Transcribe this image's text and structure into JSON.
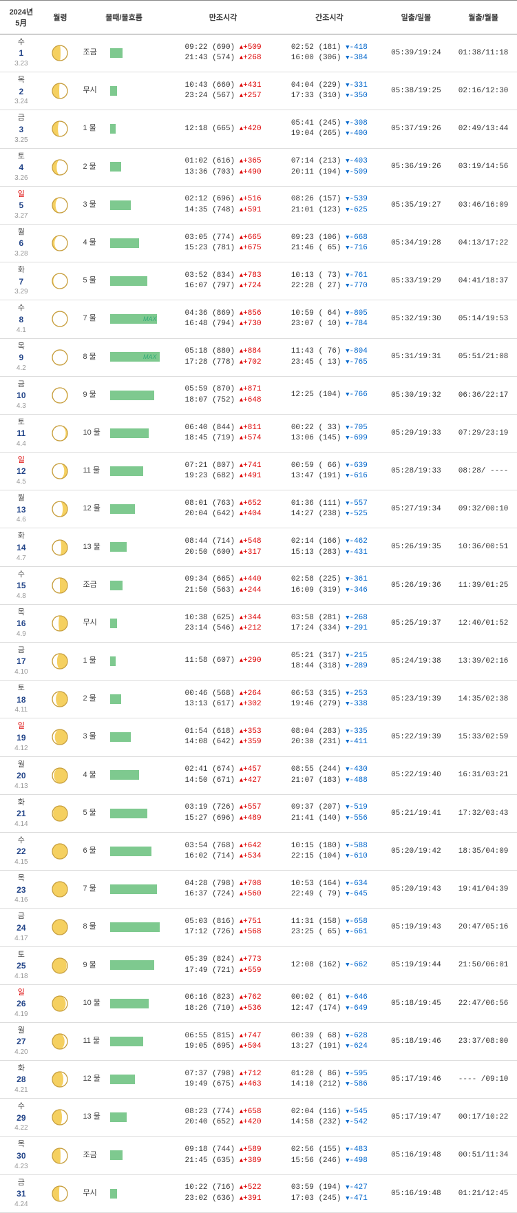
{
  "header": {
    "date": "2024년\n5月",
    "moonphase": "월령",
    "tidestate": "물때/물흐름",
    "hightide": "만조시각",
    "lowtide": "간조시각",
    "sun": "일출/일몰",
    "moon": "월출/월몰"
  },
  "days": [
    {
      "dow": "수",
      "d": "1",
      "lunar": "3.23",
      "phase": 265,
      "tide": "조금",
      "bar": "jo",
      "max": false,
      "hi": [
        {
          "t": "09:22",
          "l": "690",
          "d": "+509"
        },
        {
          "t": "21:43",
          "l": "574",
          "d": "+268"
        }
      ],
      "lo": [
        {
          "t": "02:52",
          "l": "181",
          "d": "-418"
        },
        {
          "t": "16:00",
          "l": "306",
          "d": "-384"
        }
      ],
      "sun": "05:39/19:24",
      "moon": "01:38/11:18"
    },
    {
      "dow": "목",
      "d": "2",
      "lunar": "3.24",
      "phase": 275,
      "tide": "무시",
      "bar": "mu",
      "max": false,
      "hi": [
        {
          "t": "10:43",
          "l": "660",
          "d": "+431"
        },
        {
          "t": "23:24",
          "l": "567",
          "d": "+257"
        }
      ],
      "lo": [
        {
          "t": "04:04",
          "l": "229",
          "d": "-331"
        },
        {
          "t": "17:33",
          "l": "310",
          "d": "-350"
        }
      ],
      "sun": "05:38/19:25",
      "moon": "02:16/12:30"
    },
    {
      "dow": "금",
      "d": "3",
      "lunar": "3.25",
      "phase": 285,
      "tide": "1 물",
      "bar": "t1",
      "max": false,
      "hi": [
        {
          "t": "12:18",
          "l": "665",
          "d": "+420"
        }
      ],
      "lo": [
        {
          "t": "05:41",
          "l": "245",
          "d": "-308"
        },
        {
          "t": "19:04",
          "l": "265",
          "d": "-400"
        }
      ],
      "sun": "05:37/19:26",
      "moon": "02:49/13:44"
    },
    {
      "dow": "토",
      "d": "4",
      "lunar": "3.26",
      "phase": 295,
      "tide": "2 물",
      "bar": "t2",
      "max": false,
      "hi": [
        {
          "t": "01:02",
          "l": "616",
          "d": "+365"
        },
        {
          "t": "13:36",
          "l": "703",
          "d": "+490"
        }
      ],
      "lo": [
        {
          "t": "07:14",
          "l": "213",
          "d": "-403"
        },
        {
          "t": "20:11",
          "l": "194",
          "d": "-509"
        }
      ],
      "sun": "05:36/19:26",
      "moon": "03:19/14:56"
    },
    {
      "dow": "일",
      "d": "5",
      "lunar": "3.27",
      "phase": 305,
      "tide": "3 물",
      "bar": "t3",
      "max": false,
      "sun_day": true,
      "hi": [
        {
          "t": "02:12",
          "l": "696",
          "d": "+516"
        },
        {
          "t": "14:35",
          "l": "748",
          "d": "+591"
        }
      ],
      "lo": [
        {
          "t": "08:26",
          "l": "157",
          "d": "-539"
        },
        {
          "t": "21:01",
          "l": "123",
          "d": "-625"
        }
      ],
      "sun": "05:35/19:27",
      "moon": "03:46/16:09"
    },
    {
      "dow": "월",
      "d": "6",
      "lunar": "3.28",
      "phase": 315,
      "tide": "4 물",
      "bar": "t4",
      "max": false,
      "hi": [
        {
          "t": "03:05",
          "l": "774",
          "d": "+665"
        },
        {
          "t": "15:23",
          "l": "781",
          "d": "+675"
        }
      ],
      "lo": [
        {
          "t": "09:23",
          "l": "106",
          "d": "-668"
        },
        {
          "t": "21:46",
          "l": " 65",
          "d": "-716"
        }
      ],
      "sun": "05:34/19:28",
      "moon": "04:13/17:22"
    },
    {
      "dow": "화",
      "d": "7",
      "lunar": "3.29",
      "phase": 330,
      "tide": "5 물",
      "bar": "t5",
      "max": false,
      "hi": [
        {
          "t": "03:52",
          "l": "834",
          "d": "+783"
        },
        {
          "t": "16:07",
          "l": "797",
          "d": "+724"
        }
      ],
      "lo": [
        {
          "t": "10:13",
          "l": " 73",
          "d": "-761"
        },
        {
          "t": "22:28",
          "l": " 27",
          "d": "-770"
        }
      ],
      "sun": "05:33/19:29",
      "moon": "04:41/18:37"
    },
    {
      "dow": "수",
      "d": "8",
      "lunar": "4.1",
      "phase": 350,
      "tide": "7 물",
      "bar": "t7",
      "max": true,
      "hi": [
        {
          "t": "04:36",
          "l": "869",
          "d": "+856"
        },
        {
          "t": "16:48",
          "l": "794",
          "d": "+730"
        }
      ],
      "lo": [
        {
          "t": "10:59",
          "l": " 64",
          "d": "-805"
        },
        {
          "t": "23:07",
          "l": " 10",
          "d": "-784"
        }
      ],
      "sun": "05:32/19:30",
      "moon": "05:14/19:53"
    },
    {
      "dow": "목",
      "d": "9",
      "lunar": "4.2",
      "phase": 10,
      "tide": "8 물",
      "bar": "t8",
      "max": true,
      "hi": [
        {
          "t": "05:18",
          "l": "880",
          "d": "+884"
        },
        {
          "t": "17:28",
          "l": "778",
          "d": "+702"
        }
      ],
      "lo": [
        {
          "t": "11:43",
          "l": " 76",
          "d": "-804"
        },
        {
          "t": "23:45",
          "l": " 13",
          "d": "-765"
        }
      ],
      "sun": "05:31/19:31",
      "moon": "05:51/21:08"
    },
    {
      "dow": "금",
      "d": "10",
      "lunar": "4.3",
      "phase": 25,
      "tide": "9 물",
      "bar": "t9",
      "max": false,
      "hi": [
        {
          "t": "05:59",
          "l": "870",
          "d": "+871"
        },
        {
          "t": "18:07",
          "l": "752",
          "d": "+648"
        }
      ],
      "lo": [
        {
          "t": "12:25",
          "l": "104",
          "d": "-766"
        }
      ],
      "sun": "05:30/19:32",
      "moon": "06:36/22:17"
    },
    {
      "dow": "토",
      "d": "11",
      "lunar": "4.4",
      "phase": 40,
      "tide": "10 물",
      "bar": "t10",
      "max": false,
      "hi": [
        {
          "t": "06:40",
          "l": "844",
          "d": "+811"
        },
        {
          "t": "18:45",
          "l": "719",
          "d": "+574"
        }
      ],
      "lo": [
        {
          "t": "00:22",
          "l": " 33",
          "d": "-705"
        },
        {
          "t": "13:06",
          "l": "145",
          "d": "-699"
        }
      ],
      "sun": "05:29/19:33",
      "moon": "07:29/23:19"
    },
    {
      "dow": "일",
      "d": "12",
      "lunar": "4.5",
      "phase": 55,
      "tide": "11 물",
      "bar": "t11",
      "max": false,
      "sun_day": true,
      "hi": [
        {
          "t": "07:21",
          "l": "807",
          "d": "+741"
        },
        {
          "t": "19:23",
          "l": "682",
          "d": "+491"
        }
      ],
      "lo": [
        {
          "t": "00:59",
          "l": " 66",
          "d": "-639"
        },
        {
          "t": "13:47",
          "l": "191",
          "d": "-616"
        }
      ],
      "sun": "05:28/19:33",
      "moon": "08:28/ ----"
    },
    {
      "dow": "월",
      "d": "13",
      "lunar": "4.6",
      "phase": 68,
      "tide": "12 물",
      "bar": "t12",
      "max": false,
      "hi": [
        {
          "t": "08:01",
          "l": "763",
          "d": "+652"
        },
        {
          "t": "20:04",
          "l": "642",
          "d": "+404"
        }
      ],
      "lo": [
        {
          "t": "01:36",
          "l": "111",
          "d": "-557"
        },
        {
          "t": "14:27",
          "l": "238",
          "d": "-525"
        }
      ],
      "sun": "05:27/19:34",
      "moon": "09:32/00:10"
    },
    {
      "dow": "화",
      "d": "14",
      "lunar": "4.7",
      "phase": 80,
      "tide": "13 물",
      "bar": "t13",
      "max": false,
      "hi": [
        {
          "t": "08:44",
          "l": "714",
          "d": "+548"
        },
        {
          "t": "20:50",
          "l": "600",
          "d": "+317"
        }
      ],
      "lo": [
        {
          "t": "02:14",
          "l": "166",
          "d": "-462"
        },
        {
          "t": "15:13",
          "l": "283",
          "d": "-431"
        }
      ],
      "sun": "05:26/19:35",
      "moon": "10:36/00:51"
    },
    {
      "dow": "수",
      "d": "15",
      "lunar": "4.8",
      "phase": 90,
      "tide": "조금",
      "bar": "jo",
      "max": false,
      "hi": [
        {
          "t": "09:34",
          "l": "665",
          "d": "+440"
        },
        {
          "t": "21:50",
          "l": "563",
          "d": "+244"
        }
      ],
      "lo": [
        {
          "t": "02:58",
          "l": "225",
          "d": "-361"
        },
        {
          "t": "16:09",
          "l": "319",
          "d": "-346"
        }
      ],
      "sun": "05:26/19:36",
      "moon": "11:39/01:25"
    },
    {
      "dow": "목",
      "d": "16",
      "lunar": "4.9",
      "phase": 100,
      "tide": "무시",
      "bar": "mu",
      "max": false,
      "hi": [
        {
          "t": "10:38",
          "l": "625",
          "d": "+344"
        },
        {
          "t": "23:14",
          "l": "546",
          "d": "+212"
        }
      ],
      "lo": [
        {
          "t": "03:58",
          "l": "281",
          "d": "-268"
        },
        {
          "t": "17:24",
          "l": "334",
          "d": "-291"
        }
      ],
      "sun": "05:25/19:37",
      "moon": "12:40/01:52"
    },
    {
      "dow": "금",
      "d": "17",
      "lunar": "4.10",
      "phase": 112,
      "tide": "1 물",
      "bar": "t1",
      "max": false,
      "hi": [
        {
          "t": "11:58",
          "l": "607",
          "d": "+290"
        }
      ],
      "lo": [
        {
          "t": "05:21",
          "l": "317",
          "d": "-215"
        },
        {
          "t": "18:44",
          "l": "318",
          "d": "-289"
        }
      ],
      "sun": "05:24/19:38",
      "moon": "13:39/02:16"
    },
    {
      "dow": "토",
      "d": "18",
      "lunar": "4.11",
      "phase": 122,
      "tide": "2 물",
      "bar": "t2",
      "max": false,
      "hi": [
        {
          "t": "00:46",
          "l": "568",
          "d": "+264"
        },
        {
          "t": "13:13",
          "l": "617",
          "d": "+302"
        }
      ],
      "lo": [
        {
          "t": "06:53",
          "l": "315",
          "d": "-253"
        },
        {
          "t": "19:46",
          "l": "279",
          "d": "-338"
        }
      ],
      "sun": "05:23/19:39",
      "moon": "14:35/02:38"
    },
    {
      "dow": "일",
      "d": "19",
      "lunar": "4.12",
      "phase": 132,
      "tide": "3 물",
      "bar": "t3",
      "max": false,
      "sun_day": true,
      "hi": [
        {
          "t": "01:54",
          "l": "618",
          "d": "+353"
        },
        {
          "t": "14:08",
          "l": "642",
          "d": "+359"
        }
      ],
      "lo": [
        {
          "t": "08:04",
          "l": "283",
          "d": "-335"
        },
        {
          "t": "20:30",
          "l": "231",
          "d": "-411"
        }
      ],
      "sun": "05:22/19:39",
      "moon": "15:33/02:59"
    },
    {
      "dow": "월",
      "d": "20",
      "lunar": "4.13",
      "phase": 142,
      "tide": "4 물",
      "bar": "t4",
      "max": false,
      "hi": [
        {
          "t": "02:41",
          "l": "674",
          "d": "+457"
        },
        {
          "t": "14:50",
          "l": "671",
          "d": "+427"
        }
      ],
      "lo": [
        {
          "t": "08:55",
          "l": "244",
          "d": "-430"
        },
        {
          "t": "21:07",
          "l": "183",
          "d": "-488"
        }
      ],
      "sun": "05:22/19:40",
      "moon": "16:31/03:21"
    },
    {
      "dow": "화",
      "d": "21",
      "lunar": "4.14",
      "phase": 155,
      "tide": "5 물",
      "bar": "t5",
      "max": false,
      "hi": [
        {
          "t": "03:19",
          "l": "726",
          "d": "+557"
        },
        {
          "t": "15:27",
          "l": "696",
          "d": "+489"
        }
      ],
      "lo": [
        {
          "t": "09:37",
          "l": "207",
          "d": "-519"
        },
        {
          "t": "21:41",
          "l": "140",
          "d": "-556"
        }
      ],
      "sun": "05:21/19:41",
      "moon": "17:32/03:43"
    },
    {
      "dow": "수",
      "d": "22",
      "lunar": "4.15",
      "phase": 170,
      "tide": "6 물",
      "bar": "t6",
      "max": false,
      "hi": [
        {
          "t": "03:54",
          "l": "768",
          "d": "+642"
        },
        {
          "t": "16:02",
          "l": "714",
          "d": "+534"
        }
      ],
      "lo": [
        {
          "t": "10:15",
          "l": "180",
          "d": "-588"
        },
        {
          "t": "22:15",
          "l": "104",
          "d": "-610"
        }
      ],
      "sun": "05:20/19:42",
      "moon": "18:35/04:09"
    },
    {
      "dow": "목",
      "d": "23",
      "lunar": "4.16",
      "phase": 182,
      "tide": "7 물",
      "bar": "t7",
      "max": false,
      "hi": [
        {
          "t": "04:28",
          "l": "798",
          "d": "+708"
        },
        {
          "t": "16:37",
          "l": "724",
          "d": "+560"
        }
      ],
      "lo": [
        {
          "t": "10:53",
          "l": "164",
          "d": "-634"
        },
        {
          "t": "22:49",
          "l": " 79",
          "d": "-645"
        }
      ],
      "sun": "05:20/19:43",
      "moon": "19:41/04:39"
    },
    {
      "dow": "금",
      "d": "24",
      "lunar": "4.17",
      "phase": 195,
      "tide": "8 물",
      "bar": "t8",
      "max": false,
      "hi": [
        {
          "t": "05:03",
          "l": "816",
          "d": "+751"
        },
        {
          "t": "17:12",
          "l": "726",
          "d": "+568"
        }
      ],
      "lo": [
        {
          "t": "11:31",
          "l": "158",
          "d": "-658"
        },
        {
          "t": "23:25",
          "l": " 65",
          "d": "-661"
        }
      ],
      "sun": "05:19/19:43",
      "moon": "20:47/05:16"
    },
    {
      "dow": "토",
      "d": "25",
      "lunar": "4.18",
      "phase": 208,
      "tide": "9 물",
      "bar": "t9",
      "max": false,
      "hi": [
        {
          "t": "05:39",
          "l": "824",
          "d": "+773"
        },
        {
          "t": "17:49",
          "l": "721",
          "d": "+559"
        }
      ],
      "lo": [
        {
          "t": "12:08",
          "l": "162",
          "d": "-662"
        }
      ],
      "sun": "05:19/19:44",
      "moon": "21:50/06:01"
    },
    {
      "dow": "일",
      "d": "26",
      "lunar": "4.19",
      "phase": 220,
      "tide": "10 물",
      "bar": "t10",
      "max": false,
      "sun_day": true,
      "hi": [
        {
          "t": "06:16",
          "l": "823",
          "d": "+762"
        },
        {
          "t": "18:26",
          "l": "710",
          "d": "+536"
        }
      ],
      "lo": [
        {
          "t": "00:02",
          "l": " 61",
          "d": "-646"
        },
        {
          "t": "12:47",
          "l": "174",
          "d": "-649"
        }
      ],
      "sun": "05:18/19:45",
      "moon": "22:47/06:56"
    },
    {
      "dow": "월",
      "d": "27",
      "lunar": "4.20",
      "phase": 232,
      "tide": "11 물",
      "bar": "t11",
      "max": false,
      "hi": [
        {
          "t": "06:55",
          "l": "815",
          "d": "+747"
        },
        {
          "t": "19:05",
          "l": "695",
          "d": "+504"
        }
      ],
      "lo": [
        {
          "t": "00:39",
          "l": " 68",
          "d": "-628"
        },
        {
          "t": "13:27",
          "l": "191",
          "d": "-624"
        }
      ],
      "sun": "05:18/19:46",
      "moon": "23:37/08:00"
    },
    {
      "dow": "화",
      "d": "28",
      "lunar": "4.21",
      "phase": 243,
      "tide": "12 물",
      "bar": "t12",
      "max": false,
      "hi": [
        {
          "t": "07:37",
          "l": "798",
          "d": "+712"
        },
        {
          "t": "19:49",
          "l": "675",
          "d": "+463"
        }
      ],
      "lo": [
        {
          "t": "01:20",
          "l": " 86",
          "d": "-595"
        },
        {
          "t": "14:10",
          "l": "212",
          "d": "-586"
        }
      ],
      "sun": "05:17/19:46",
      "moon": "---- /09:10"
    },
    {
      "dow": "수",
      "d": "29",
      "lunar": "4.22",
      "phase": 254,
      "tide": "13 물",
      "bar": "t13",
      "max": false,
      "hi": [
        {
          "t": "08:23",
          "l": "774",
          "d": "+658"
        },
        {
          "t": "20:40",
          "l": "652",
          "d": "+420"
        }
      ],
      "lo": [
        {
          "t": "02:04",
          "l": "116",
          "d": "-545"
        },
        {
          "t": "14:58",
          "l": "232",
          "d": "-542"
        }
      ],
      "sun": "05:17/19:47",
      "moon": "00:17/10:22"
    },
    {
      "dow": "목",
      "d": "30",
      "lunar": "4.23",
      "phase": 265,
      "tide": "조금",
      "bar": "jo",
      "max": false,
      "hi": [
        {
          "t": "09:18",
          "l": "744",
          "d": "+589"
        },
        {
          "t": "21:45",
          "l": "635",
          "d": "+389"
        }
      ],
      "lo": [
        {
          "t": "02:56",
          "l": "155",
          "d": "-483"
        },
        {
          "t": "15:56",
          "l": "246",
          "d": "-498"
        }
      ],
      "sun": "05:16/19:48",
      "moon": "00:51/11:34"
    },
    {
      "dow": "금",
      "d": "31",
      "lunar": "4.24",
      "phase": 276,
      "tide": "무시",
      "bar": "mu",
      "max": false,
      "hi": [
        {
          "t": "10:22",
          "l": "716",
          "d": "+522"
        },
        {
          "t": "23:02",
          "l": "636",
          "d": "+391"
        }
      ],
      "lo": [
        {
          "t": "03:59",
          "l": "194",
          "d": "-427"
        },
        {
          "t": "17:03",
          "l": "245",
          "d": "-471"
        }
      ],
      "sun": "05:16/19:48",
      "moon": "01:21/12:45"
    }
  ],
  "colors": {
    "bar": "#7ec98f",
    "up": "#d00000",
    "down": "#0066cc",
    "moon_stroke": "#c8a040",
    "moon_lit": "#f5d060",
    "moon_dark": "#ffffff"
  },
  "max_label": "MAX"
}
